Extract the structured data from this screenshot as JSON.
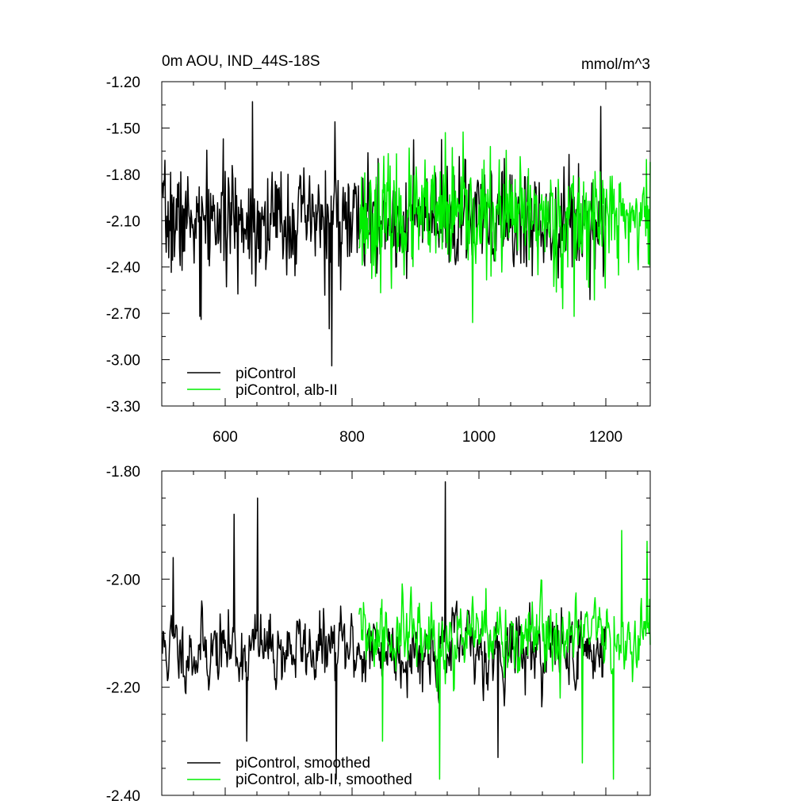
{
  "colors": {
    "piControl": "#000000",
    "alb_II": "#00ee00",
    "axis": "#000000",
    "background": "#ffffff"
  },
  "chart_data": [
    {
      "type": "line",
      "title": "0m AOU, IND_44S-18S",
      "units": "mmol/m^3",
      "xlim": [
        500,
        1270
      ],
      "ylim": [
        -3.3,
        -1.2
      ],
      "xticks": [
        600,
        800,
        1000,
        1200
      ],
      "xtick_labels": [
        "600",
        "800",
        "1000",
        "1200"
      ],
      "yticks": [
        -3.3,
        -3.0,
        -2.7,
        -2.4,
        -2.1,
        -1.8,
        -1.5,
        -1.2
      ],
      "ytick_labels": [
        "-3.30",
        "-3.00",
        "-2.70",
        "-2.40",
        "-2.10",
        "-1.80",
        "-1.50",
        "-1.20"
      ],
      "legend_position": "bottom-left",
      "series": [
        {
          "name": "piControl",
          "color": "#000000",
          "x_start": 501,
          "x_end": 1200,
          "seed": 7,
          "mean": -2.1,
          "std": 0.17,
          "peaks": [
            [
              643,
              -1.33
            ],
            [
              768,
              -3.04
            ],
            [
              773,
              -1.46
            ],
            [
              1192,
              -1.36
            ],
            [
              562,
              -2.74
            ],
            [
              560,
              -2.72
            ],
            [
              764,
              -2.8
            ]
          ]
        },
        {
          "name": "piControl, alb-II",
          "color": "#00ee00",
          "x_start": 811,
          "x_end": 1270,
          "seed": 23,
          "mean": -2.08,
          "std": 0.18,
          "peaks": [
            [
              947,
              -1.53
            ],
            [
              990,
              -2.76
            ],
            [
              1132,
              -2.67
            ],
            [
              1150,
              -2.72
            ],
            [
              1270,
              -1.72
            ]
          ]
        }
      ]
    },
    {
      "type": "line",
      "title": "",
      "xlim": [
        500,
        1270
      ],
      "ylim": [
        -2.4,
        -1.8
      ],
      "xticks": [
        600,
        800,
        1000,
        1200
      ],
      "yticks": [
        -2.4,
        -2.2,
        -2.0,
        -1.8
      ],
      "ytick_labels": [
        "-2.40",
        "-2.20",
        "-2.00",
        "-1.80"
      ],
      "legend_position": "bottom-left",
      "series": [
        {
          "name": "piControl, smoothed",
          "color": "#000000",
          "x_start": 501,
          "x_end": 1200,
          "seed": 11,
          "mean": -2.13,
          "std": 0.065,
          "peaks": [
            [
              518,
              -1.96
            ],
            [
              614,
              -1.88
            ],
            [
              651,
              -1.85
            ],
            [
              775,
              -2.37
            ],
            [
              947,
              -1.82
            ],
            [
              1030,
              -2.33
            ],
            [
              634,
              -2.3
            ]
          ]
        },
        {
          "name": "piControl, alb-II, smoothed",
          "color": "#00ee00",
          "x_start": 811,
          "x_end": 1270,
          "seed": 31,
          "mean": -2.11,
          "std": 0.07,
          "peaks": [
            [
              938,
              -2.37
            ],
            [
              1163,
              -2.34
            ],
            [
              1212,
              -2.37
            ],
            [
              1225,
              -1.91
            ],
            [
              1265,
              -1.93
            ],
            [
              848,
              -2.3
            ]
          ]
        }
      ]
    }
  ]
}
